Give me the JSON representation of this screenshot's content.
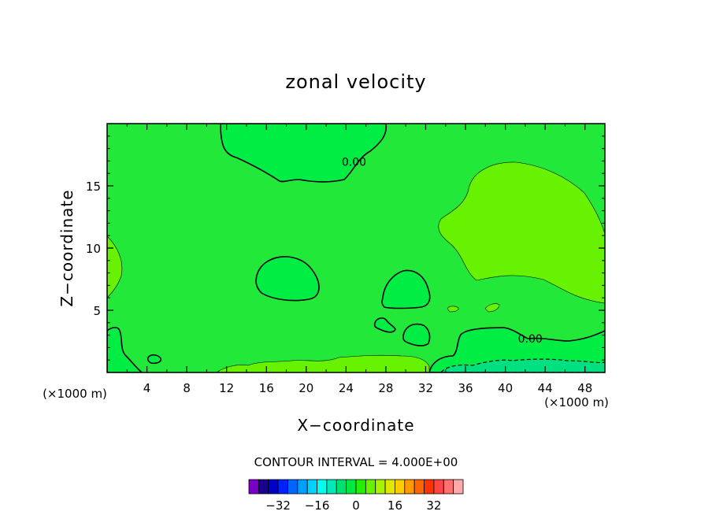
{
  "chart_data": {
    "type": "contour",
    "title": "zonal velocity",
    "xlabel": "X−coordinate",
    "ylabel": "Z−coordinate",
    "x_unit_left": "(×1000 m)",
    "x_unit_right": "(×1000 m)",
    "xlim": [
      0,
      50
    ],
    "ylim": [
      0,
      20
    ],
    "x_ticks": [
      4,
      8,
      12,
      16,
      20,
      24,
      28,
      32,
      36,
      40,
      44,
      48
    ],
    "x_tick_labels": [
      "4",
      "8",
      "12",
      "16",
      "20",
      "24",
      "28",
      "32",
      "36",
      "40",
      "44",
      "48"
    ],
    "y_ticks": [
      5,
      10,
      15
    ],
    "y_tick_labels": [
      "5",
      "10",
      "15"
    ],
    "contour_interval_text": "CONTOUR INTERVAL = 4.000E+00",
    "contour_labels": [
      {
        "text": "0.00",
        "x": 24.8,
        "z": 16.6
      },
      {
        "text": "0.00",
        "x": 42.5,
        "z": 2.4
      }
    ],
    "field_colors": {
      "base": "#22e83a",
      "light": "#66f200",
      "dark": "#00ee44",
      "teal": "#00e080"
    },
    "colorbar": {
      "colors": [
        "#7a00c8",
        "#1a0090",
        "#0000c8",
        "#0022ff",
        "#0066ff",
        "#00a0ff",
        "#00d2ff",
        "#00ffee",
        "#00e8b8",
        "#00e070",
        "#00e840",
        "#22f000",
        "#66f200",
        "#aaf200",
        "#e0e800",
        "#ffcc00",
        "#ff9900",
        "#ff6600",
        "#ff3300",
        "#ff4444",
        "#ff7070",
        "#ffaaaa"
      ],
      "tick_labels": [
        "−32",
        "−16",
        "0",
        "16",
        "32"
      ],
      "tick_values": [
        -32,
        -16,
        0,
        16,
        32
      ],
      "min": -44,
      "max": 44
    }
  }
}
